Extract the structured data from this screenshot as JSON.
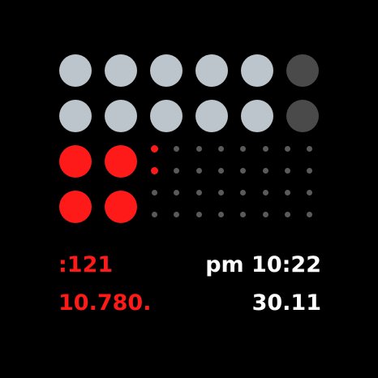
{
  "colors": {
    "background": "#000000",
    "accent_red": "#ff1a1a",
    "dot_light": "#bcc4cc",
    "dot_dim": "#4a4a4a",
    "dot_small_grey": "#5a5a5a",
    "text_white": "#ffffff"
  },
  "big_grid": [
    [
      "light",
      "light",
      "light",
      "light",
      "light",
      "dim"
    ],
    [
      "light",
      "light",
      "light",
      "light",
      "light",
      "dim"
    ],
    [
      "red",
      "red"
    ],
    [
      "red",
      "red"
    ]
  ],
  "small_grid": [
    [
      "red",
      "grey",
      "grey",
      "grey",
      "grey",
      "grey",
      "grey",
      "grey"
    ],
    [
      "red",
      "grey",
      "grey",
      "grey",
      "grey",
      "grey",
      "grey",
      "grey"
    ],
    [
      "grey",
      "grey",
      "grey",
      "grey",
      "grey",
      "grey",
      "grey",
      "grey"
    ],
    [
      "grey",
      "grey",
      "grey",
      "grey",
      "grey",
      "grey",
      "grey",
      "grey"
    ]
  ],
  "labels": {
    "left_top": ":121",
    "left_bottom": "10.780.",
    "right_top": "pm 10:22",
    "right_bottom": "30.11"
  }
}
